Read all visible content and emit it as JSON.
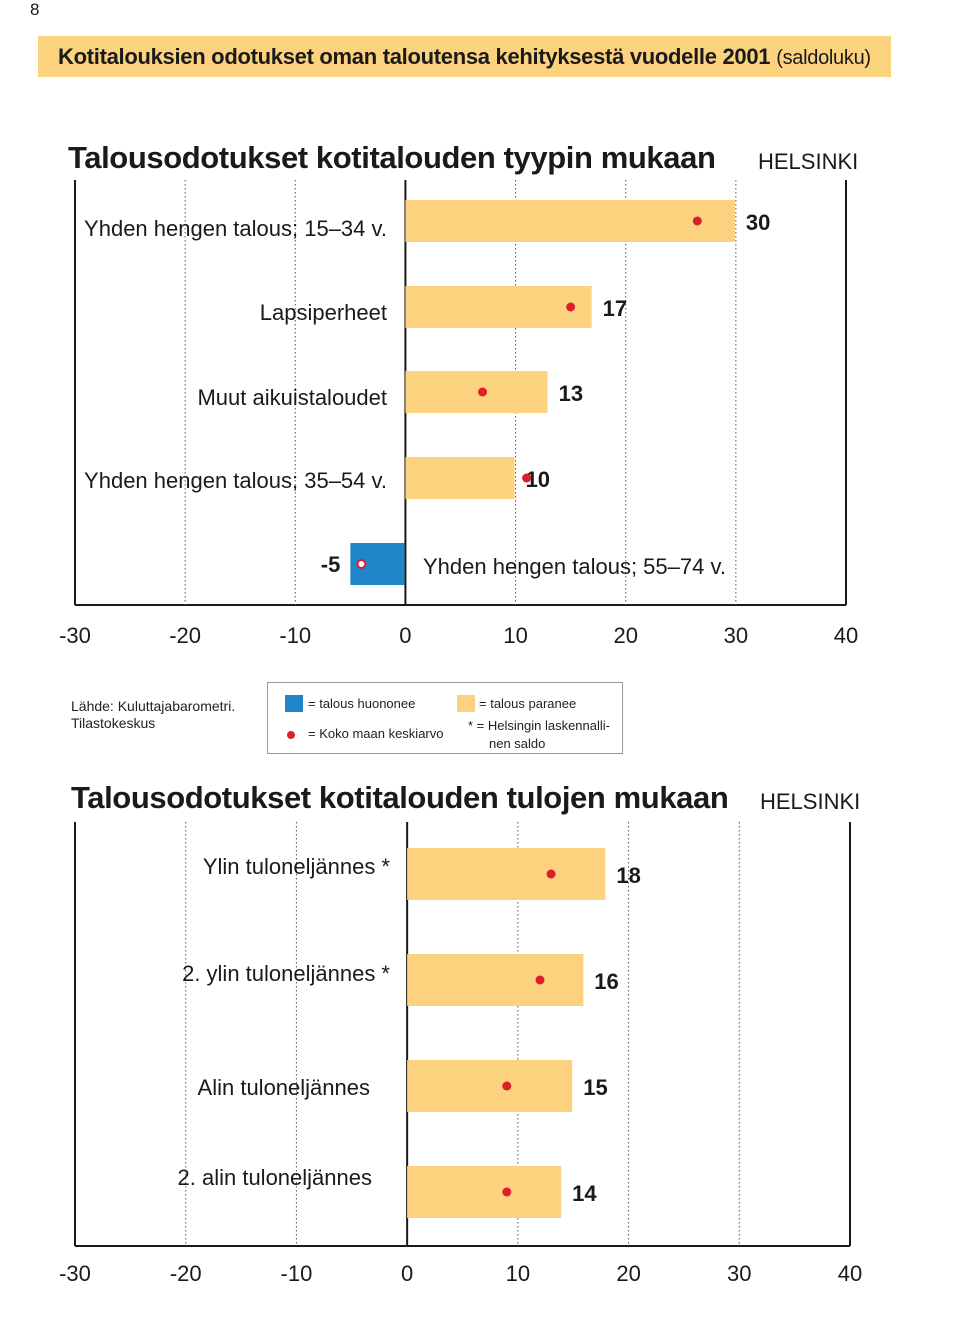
{
  "page_number": "8",
  "banner": {
    "title": "Kotitalouksien odotukset oman taloutensa kehityksestä vuodelle 2001",
    "subtitle": "(saldoluku)"
  },
  "legend": {
    "negative": "= talous huononee",
    "positive": "= talous paranee",
    "average": "= Koko maan keskiarvo",
    "helsinki_note_line1": "* = Helsingin laskennalli-",
    "helsinki_note_line2": "nen  saldo"
  },
  "source": {
    "line1": "Lähde: Kuluttajabarometri.",
    "line2": "Tilastokeskus"
  },
  "colors": {
    "positive_bar": "#fcd27e",
    "negative_bar": "#1f86c9",
    "average_dot": "#dd1f2c",
    "banner": "#fcd27e"
  },
  "chart_data": [
    {
      "type": "bar",
      "orientation": "horizontal",
      "title": "Talousodotukset kotitalouden tyypin mukaan",
      "region": "HELSINKI",
      "categories": [
        "Yhden hengen talous; 15–34 v.",
        "Lapsiperheet",
        "Muut aikuistaloudet",
        "Yhden hengen talous; 35–54 v.",
        "Yhden hengen talous; 55–74 v."
      ],
      "values": [
        30,
        17,
        13,
        10,
        -5
      ],
      "value_labels": [
        "30",
        "17",
        "13",
        "10",
        "-5"
      ],
      "country_average": [
        26.5,
        15,
        7,
        11,
        -4
      ],
      "xlim": [
        -30,
        40
      ],
      "ticks": [
        -30,
        -20,
        -10,
        0,
        10,
        20,
        30,
        40
      ],
      "tick_labels": [
        "-30",
        "-20",
        "-10",
        "0",
        "10",
        "20",
        "30",
        "40"
      ],
      "grid": true
    },
    {
      "type": "bar",
      "orientation": "horizontal",
      "title": "Talousodotukset kotitalouden tulojen mukaan",
      "region": "HELSINKI",
      "categories": [
        "Ylin tuloneljännes *",
        "2. ylin tuloneljännes *",
        "Alin tuloneljännes",
        "2. alin tuloneljännes"
      ],
      "values": [
        18,
        16,
        15,
        14
      ],
      "value_labels": [
        "18",
        "16",
        "15",
        "14"
      ],
      "country_average": [
        13,
        12,
        9,
        9
      ],
      "xlim": [
        -30,
        40
      ],
      "ticks": [
        -30,
        -20,
        -10,
        0,
        10,
        20,
        30,
        40
      ],
      "tick_labels": [
        "-30",
        "-20",
        "-10",
        "0",
        "10",
        "20",
        "30",
        "40"
      ],
      "grid": true
    }
  ]
}
